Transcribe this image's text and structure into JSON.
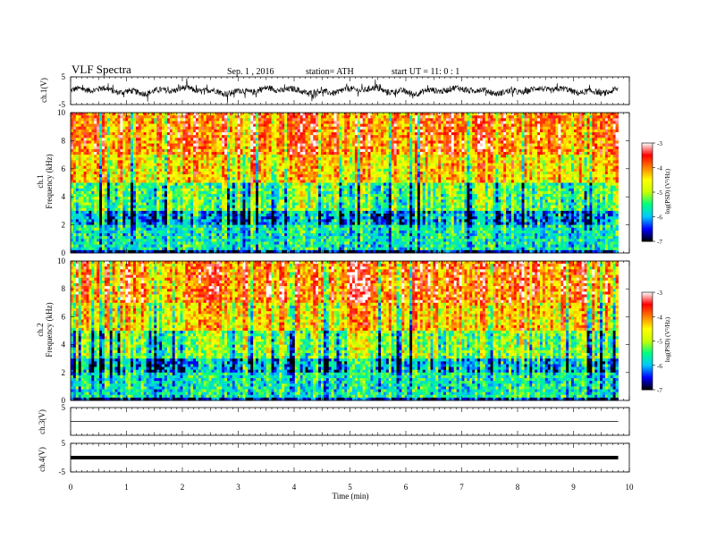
{
  "header": {
    "title": "VLF  Spectra",
    "date": "Sep. 1  , 2016",
    "station": "station= ATH",
    "start": "start  UT  =    11: 0  : 1"
  },
  "panels": {
    "ch1_wave_label": "ch.1(V)",
    "ch1_spec_label_a": "ch.1",
    "ch1_spec_label_b": "Frequency  (kHz)",
    "ch2_spec_label_a": "ch.2",
    "ch2_spec_label_b": "Frequency  (kHz)",
    "ch3_wave_label": "ch.3(V)",
    "ch4_wave_label": "ch.4(V)",
    "colorbar_label": "log(PSD) (V²/Hz)"
  },
  "colors": {
    "colormap": [
      "#000000",
      "#0000ff",
      "#00c8ff",
      "#00ff80",
      "#c8ff00",
      "#ffff00",
      "#ff8000",
      "#ff0000",
      "#ffffff"
    ]
  },
  "chart_data": [
    {
      "type": "line",
      "name": "ch.1 waveform",
      "ylabel": "ch.1(V)",
      "ylim": [
        -5,
        5
      ],
      "yticks": [
        "5",
        "-5"
      ],
      "x_range_min": [
        0,
        9.8
      ],
      "description_values": "dense noisy waveform, amplitude roughly ±2.5 V"
    },
    {
      "type": "heatmap",
      "name": "ch.1 spectrogram",
      "ylabel": "Frequency  (kHz)",
      "ylim": [
        0,
        10
      ],
      "yticks": [
        "0",
        "2",
        "4",
        "6",
        "8",
        "10"
      ],
      "x_range_min": [
        0,
        9.8
      ],
      "colorbar": {
        "range": [
          -7,
          -3
        ],
        "ticks": [
          "-3",
          "-4",
          "-5",
          "-6",
          "-7"
        ]
      },
      "bands": [
        {
          "freq_khz": [
            0,
            0.3
          ],
          "level": -6.5
        },
        {
          "freq_khz": [
            0.3,
            2.0
          ],
          "level": -5.6
        },
        {
          "freq_khz": [
            2.0,
            3.0
          ],
          "level": -6.0
        },
        {
          "freq_khz": [
            3.0,
            5.0
          ],
          "level": -5.2
        },
        {
          "freq_khz": [
            5.0,
            7.0
          ],
          "level": -4.3
        },
        {
          "freq_khz": [
            7.0,
            10.0
          ],
          "level": -3.8
        }
      ]
    },
    {
      "type": "heatmap",
      "name": "ch.2 spectrogram",
      "ylabel": "Frequency  (kHz)",
      "ylim": [
        0,
        10
      ],
      "yticks": [
        "0",
        "2",
        "4",
        "6",
        "8",
        "10"
      ],
      "x_range_min": [
        0,
        9.8
      ],
      "colorbar": {
        "range": [
          -7,
          -3
        ],
        "ticks": [
          "-3",
          "-4",
          "-5",
          "-6",
          "-7"
        ]
      },
      "bands": [
        {
          "freq_khz": [
            0,
            0.3
          ],
          "level": -6.5
        },
        {
          "freq_khz": [
            0.3,
            2.0
          ],
          "level": -5.6
        },
        {
          "freq_khz": [
            2.0,
            3.0
          ],
          "level": -5.9
        },
        {
          "freq_khz": [
            3.0,
            5.0
          ],
          "level": -5.1
        },
        {
          "freq_khz": [
            5.0,
            7.0
          ],
          "level": -4.3
        },
        {
          "freq_khz": [
            7.0,
            10.0
          ],
          "level": -3.8
        }
      ]
    },
    {
      "type": "line",
      "name": "ch.3 waveform",
      "ylabel": "ch.3(V)",
      "ylim": [
        -5,
        5
      ],
      "yticks": [
        "5"
      ],
      "x_range_min": [
        0,
        9.8
      ],
      "level_v": 0
    },
    {
      "type": "line",
      "name": "ch.4 waveform",
      "ylabel": "ch.4(V)",
      "ylim": [
        -5,
        5
      ],
      "yticks": [
        "5",
        "-5"
      ],
      "x_range_min": [
        0,
        9.8
      ],
      "level_v": 0
    }
  ],
  "xaxis": {
    "label": "Time  (min)",
    "range": [
      0,
      10
    ],
    "ticks": [
      "0",
      "1",
      "2",
      "3",
      "4",
      "5",
      "6",
      "7",
      "8",
      "9",
      "10"
    ]
  }
}
